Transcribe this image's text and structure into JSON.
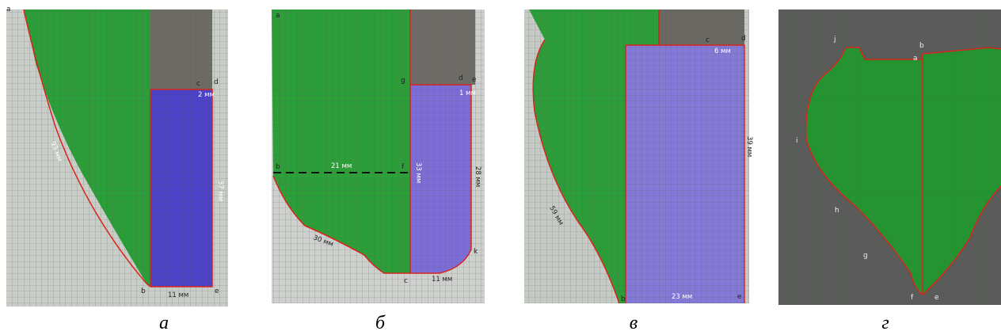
{
  "panels": [
    {
      "caption": "а",
      "points": [
        "a",
        "c",
        "d",
        "b",
        "e"
      ],
      "measures": [
        "93 мм",
        "2 мм",
        "37 мм",
        "11 мм"
      ]
    },
    {
      "caption": "б",
      "points": [
        "a",
        "g",
        "d",
        "e",
        "b",
        "f",
        "c",
        "k"
      ],
      "measures": [
        "21 мм",
        "33 мм",
        "1 мм",
        "28 мм",
        "30 мм",
        "11 мм"
      ]
    },
    {
      "caption": "в",
      "points": [
        "c",
        "d",
        "b",
        "e"
      ],
      "measures": [
        "6 мм",
        "39 мм",
        "59 мм",
        "23 мм"
      ]
    },
    {
      "caption": "г",
      "points": [
        "j",
        "b",
        "a",
        "i",
        "h",
        "g",
        "f",
        "e"
      ]
    }
  ]
}
